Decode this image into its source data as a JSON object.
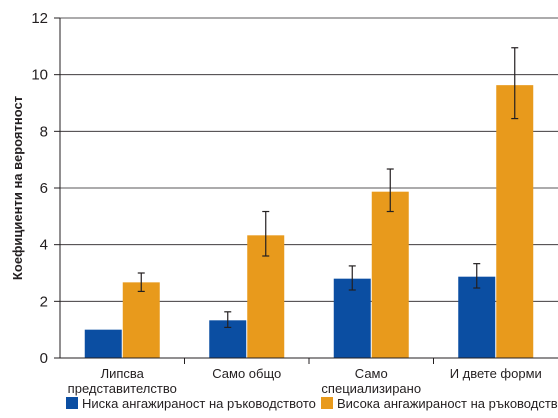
{
  "chart_data": {
    "type": "bar",
    "ylabel": "Коефициенти на вероятност",
    "xlabel": "",
    "ylim": [
      0,
      12
    ],
    "yticks": [
      0,
      2,
      4,
      6,
      8,
      10,
      12
    ],
    "grid": true,
    "legend_position": "bottom",
    "categories": [
      [
        "Липсва",
        "представителство"
      ],
      [
        "Само общо"
      ],
      [
        "Само",
        "специализирано"
      ],
      [
        "И двете форми"
      ]
    ],
    "series": [
      {
        "name": "Ниска ангажираност на ръководството",
        "color": "#0b4ea2",
        "values": [
          1.0,
          1.33,
          2.8,
          2.87
        ],
        "error_low": [
          null,
          1.08,
          2.4,
          2.47
        ],
        "error_high": [
          null,
          1.63,
          3.25,
          3.33
        ]
      },
      {
        "name": "Висока ангажираност на ръководството",
        "color": "#e89a1c",
        "values": [
          2.67,
          4.33,
          5.87,
          9.63
        ],
        "error_low": [
          2.35,
          3.6,
          5.17,
          8.45
        ],
        "error_high": [
          3.0,
          5.17,
          6.67,
          10.95
        ]
      }
    ]
  }
}
